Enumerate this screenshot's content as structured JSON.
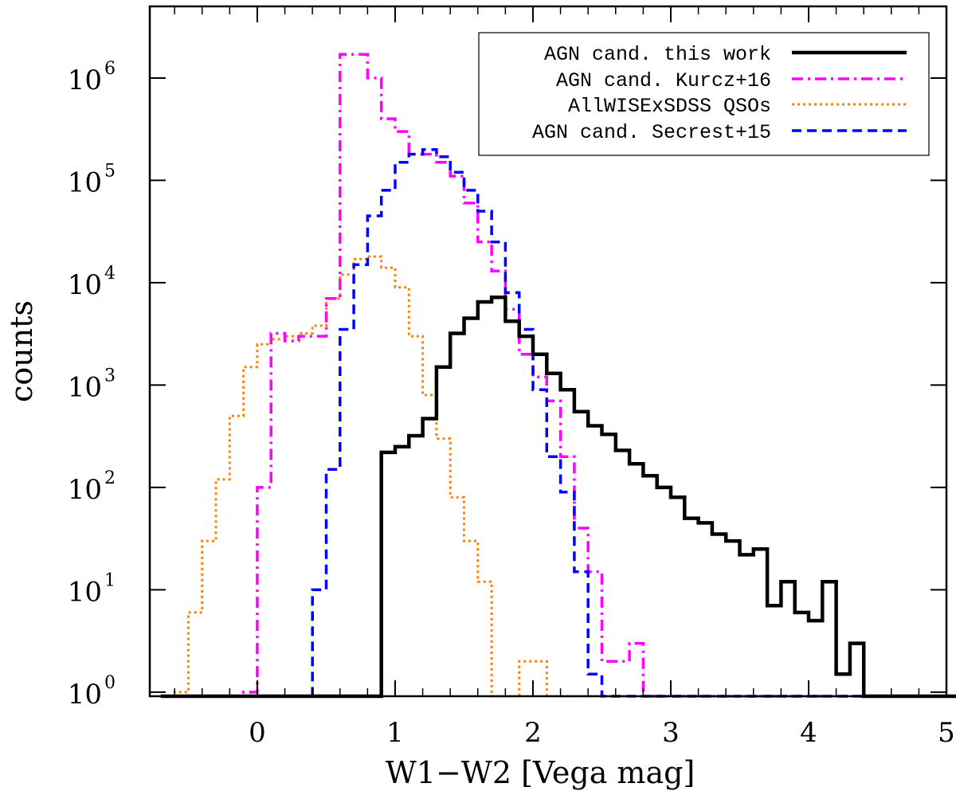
{
  "chart_data": {
    "type": "line",
    "subtype": "step-histogram",
    "title": "",
    "xlabel": "W1−W2 [Vega mag]",
    "ylabel": "counts",
    "xlim": [
      -0.78,
      5.0
    ],
    "ylim_log10": [
      -0.04,
      6.7
    ],
    "yscale": "log",
    "grid": false,
    "legend_position": "top-right",
    "x_ticks": [
      {
        "value": 0,
        "label": "0"
      },
      {
        "value": 1,
        "label": "1"
      },
      {
        "value": 2,
        "label": "2"
      },
      {
        "value": 3,
        "label": "3"
      },
      {
        "value": 4,
        "label": "4"
      },
      {
        "value": 5,
        "label": "5"
      }
    ],
    "y_ticks": [
      {
        "exp": 0,
        "base": "10",
        "exp_label": "0"
      },
      {
        "exp": 1,
        "base": "10",
        "exp_label": "1"
      },
      {
        "exp": 2,
        "base": "10",
        "exp_label": "2"
      },
      {
        "exp": 3,
        "base": "10",
        "exp_label": "3"
      },
      {
        "exp": 4,
        "base": "10",
        "exp_label": "4"
      },
      {
        "exp": 5,
        "base": "10",
        "exp_label": "5"
      },
      {
        "exp": 6,
        "base": "10",
        "exp_label": "6"
      }
    ],
    "bin_start": -0.7,
    "bin_width": 0.1,
    "series": [
      {
        "name": "AGN cand. this work",
        "color": "#000000",
        "dash": "solid",
        "width": 4.5,
        "values": [
          0,
          0,
          0,
          0,
          0,
          0,
          0,
          0,
          0,
          0,
          0,
          0,
          0,
          0,
          0,
          0,
          220,
          250,
          320,
          470,
          1500,
          3200,
          4500,
          6500,
          7200,
          4200,
          3000,
          2000,
          1300,
          900,
          550,
          400,
          330,
          230,
          170,
          130,
          100,
          80,
          50,
          45,
          35,
          30,
          22,
          25,
          7,
          12,
          6,
          5,
          12,
          1.5,
          3,
          0,
          0,
          0,
          0,
          0,
          0,
          0
        ]
      },
      {
        "name": "AGN cand. Kurcz+16",
        "color": "#ff00ff",
        "dash": "dash-dot",
        "width": 3.5,
        "values": [
          0,
          0,
          0,
          0,
          0,
          0,
          1,
          100,
          3200,
          2700,
          3000,
          3000,
          7000,
          1700000,
          1700000,
          1000000,
          400000,
          300000,
          180000,
          180000,
          150000,
          110000,
          60000,
          25000,
          13000,
          5500,
          2000,
          1200,
          700,
          200,
          40,
          15,
          2,
          2,
          3,
          0,
          0,
          0,
          0,
          0,
          0,
          0,
          0,
          0,
          0,
          0,
          0,
          0,
          0,
          0,
          0,
          0,
          0,
          0,
          0,
          0,
          0,
          0
        ]
      },
      {
        "name": "AllWISExSDSS QSOs",
        "color": "#ff8000",
        "dash": "dotted",
        "width": 3.0,
        "values": [
          0,
          1,
          6,
          30,
          120,
          500,
          1500,
          2500,
          2800,
          3000,
          3200,
          3800,
          7000,
          12000,
          17000,
          18000,
          14000,
          9000,
          3000,
          800,
          300,
          80,
          30,
          12,
          0,
          0,
          2,
          2,
          0,
          0,
          0,
          0,
          0,
          0,
          0,
          0,
          0,
          0,
          0,
          0,
          0,
          0,
          0,
          0,
          0,
          0,
          0,
          0,
          0,
          0,
          0,
          0,
          0,
          0,
          0,
          0,
          0,
          0
        ]
      },
      {
        "name": "AGN cand. Secrest+15",
        "color": "#0000ff",
        "dash": "dashed",
        "width": 3.5,
        "values": [
          0,
          0,
          0,
          0,
          0,
          0,
          0,
          0,
          0,
          0,
          0,
          10,
          150,
          3500,
          15000,
          45000,
          80000,
          150000,
          180000,
          200000,
          170000,
          120000,
          80000,
          50000,
          25000,
          8000,
          3500,
          900,
          200,
          90,
          15,
          1.5,
          0,
          0,
          0,
          0,
          0,
          0,
          0,
          0,
          0,
          0,
          0,
          0,
          0,
          0,
          0,
          0,
          0,
          0,
          0,
          0,
          0,
          0,
          0,
          0,
          0,
          0
        ]
      }
    ]
  },
  "legend": {
    "items": [
      {
        "label": "AGN cand. this work",
        "color": "#000000",
        "dash": "solid"
      },
      {
        "label": "AGN cand. Kurcz+16",
        "color": "#ff00ff",
        "dash": "dash-dot"
      },
      {
        "label": "AllWISExSDSS QSOs",
        "color": "#ff8000",
        "dash": "dotted"
      },
      {
        "label": "AGN cand. Secrest+15",
        "color": "#0000ff",
        "dash": "dashed"
      }
    ]
  }
}
